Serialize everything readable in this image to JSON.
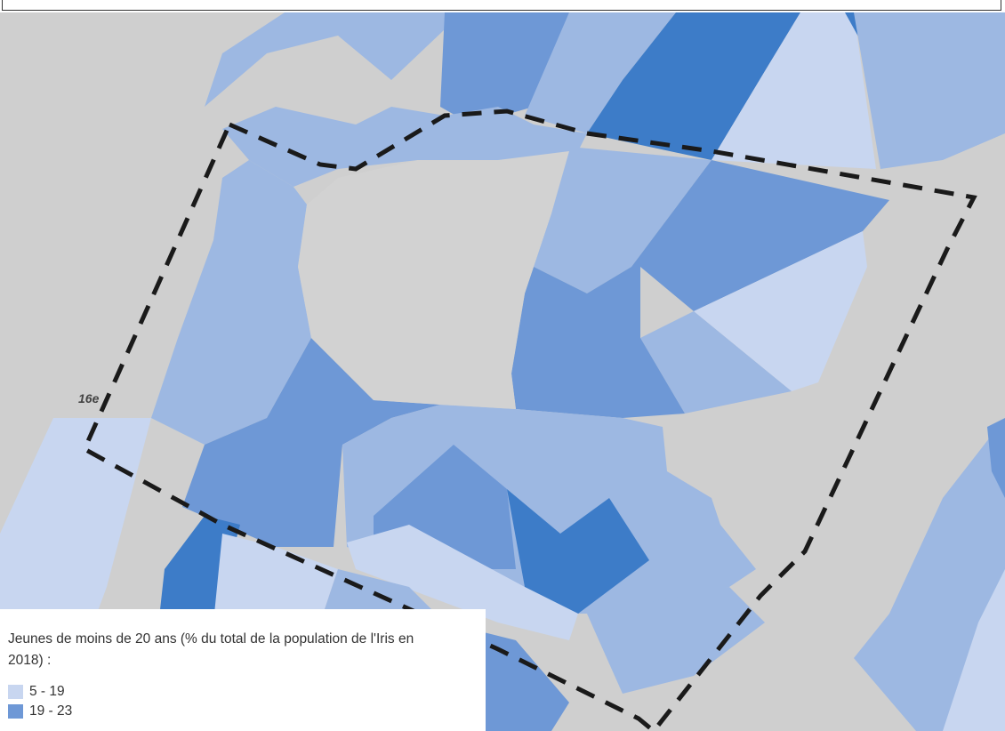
{
  "map": {
    "arrondissement_label": "16e",
    "colors": {
      "background": "#cfcfcf",
      "class_1": "#c8d6f0",
      "class_2": "#9db8e2",
      "class_3": "#6e98d6",
      "class_4": "#3d7cc8",
      "boundary": "#1a1a1a"
    }
  },
  "legend": {
    "title": "Jeunes de moins de 20 ans (% du total de la population de l'Iris en 2018) :",
    "items": [
      {
        "label": "5 - 19",
        "color": "#c8d6f0"
      },
      {
        "label": "19 - 23",
        "color": "#6e98d6"
      }
    ]
  }
}
